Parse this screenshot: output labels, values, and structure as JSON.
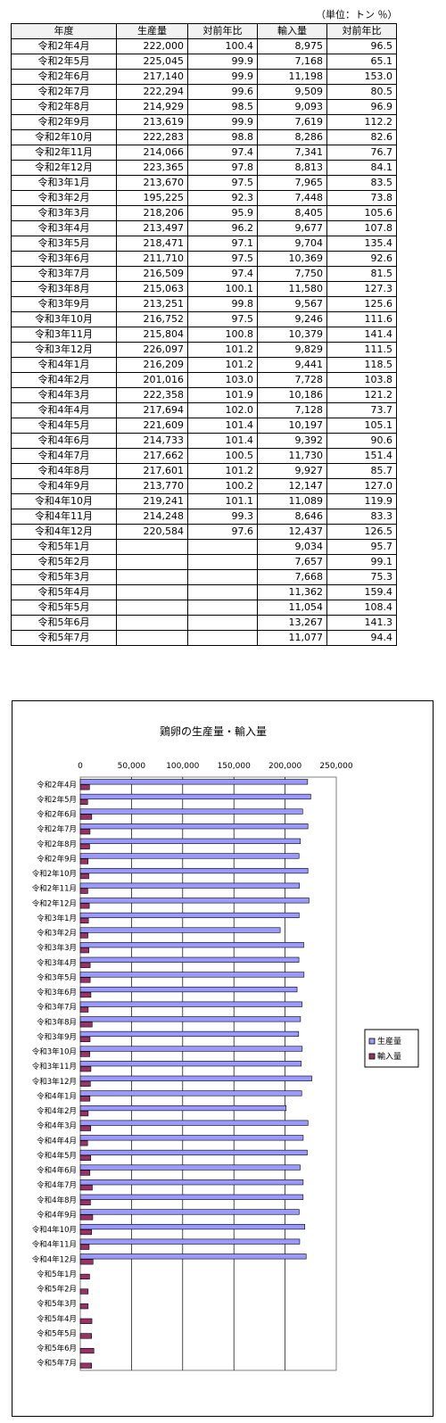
{
  "unit_note": "（単位：トン ％）",
  "table": {
    "headers": [
      "年度",
      "生産量",
      "対前年比",
      "輸入量",
      "対前年比"
    ],
    "rows": [
      [
        "令和2年4月",
        "222,000",
        "100.4",
        "8,975",
        "96.5"
      ],
      [
        "令和2年5月",
        "225,045",
        "99.9",
        "7,168",
        "65.1"
      ],
      [
        "令和2年6月",
        "217,140",
        "99.9",
        "11,198",
        "153.0"
      ],
      [
        "令和2年7月",
        "222,294",
        "99.6",
        "9,509",
        "80.5"
      ],
      [
        "令和2年8月",
        "214,929",
        "98.5",
        "9,093",
        "96.9"
      ],
      [
        "令和2年9月",
        "213,619",
        "99.9",
        "7,619",
        "112.2"
      ],
      [
        "令和2年10月",
        "222,283",
        "98.8",
        "8,286",
        "82.6"
      ],
      [
        "令和2年11月",
        "214,066",
        "97.4",
        "7,341",
        "76.7"
      ],
      [
        "令和2年12月",
        "223,365",
        "97.8",
        "8,813",
        "84.1"
      ],
      [
        "令和3年1月",
        "213,670",
        "97.5",
        "7,965",
        "83.5"
      ],
      [
        "令和3年2月",
        "195,225",
        "92.3",
        "7,448",
        "73.8"
      ],
      [
        "令和3年3月",
        "218,206",
        "95.9",
        "8,405",
        "105.6"
      ],
      [
        "令和3年4月",
        "213,497",
        "96.2",
        "9,677",
        "107.8"
      ],
      [
        "令和3年5月",
        "218,471",
        "97.1",
        "9,704",
        "135.4"
      ],
      [
        "令和3年6月",
        "211,710",
        "97.5",
        "10,369",
        "92.6"
      ],
      [
        "令和3年7月",
        "216,509",
        "97.4",
        "7,750",
        "81.5"
      ],
      [
        "令和3年8月",
        "215,063",
        "100.1",
        "11,580",
        "127.3"
      ],
      [
        "令和3年9月",
        "213,251",
        "99.8",
        "9,567",
        "125.6"
      ],
      [
        "令和3年10月",
        "216,752",
        "97.5",
        "9,246",
        "111.6"
      ],
      [
        "令和3年11月",
        "215,804",
        "100.8",
        "10,379",
        "141.4"
      ],
      [
        "令和3年12月",
        "226,097",
        "101.2",
        "9,829",
        "111.5"
      ],
      [
        "令和4年1月",
        "216,209",
        "101.2",
        "9,441",
        "118.5"
      ],
      [
        "令和4年2月",
        "201,016",
        "103.0",
        "7,728",
        "103.8"
      ],
      [
        "令和4年3月",
        "222,358",
        "101.9",
        "10,186",
        "121.2"
      ],
      [
        "令和4年4月",
        "217,694",
        "102.0",
        "7,128",
        "73.7"
      ],
      [
        "令和4年5月",
        "221,609",
        "101.4",
        "10,197",
        "105.1"
      ],
      [
        "令和4年6月",
        "214,733",
        "101.4",
        "9,392",
        "90.6"
      ],
      [
        "令和4年7月",
        "217,662",
        "100.5",
        "11,730",
        "151.4"
      ],
      [
        "令和4年8月",
        "217,601",
        "101.2",
        "9,927",
        "85.7"
      ],
      [
        "令和4年9月",
        "213,770",
        "100.2",
        "12,147",
        "127.0"
      ],
      [
        "令和4年10月",
        "219,241",
        "101.1",
        "11,089",
        "119.9"
      ],
      [
        "令和4年11月",
        "214,248",
        "99.3",
        "8,646",
        "83.3"
      ],
      [
        "令和4年12月",
        "220,584",
        "97.6",
        "12,437",
        "126.5"
      ],
      [
        "令和5年1月",
        "",
        "",
        "9,034",
        "95.7"
      ],
      [
        "令和5年2月",
        "",
        "",
        "7,657",
        "99.1"
      ],
      [
        "令和5年3月",
        "",
        "",
        "7,668",
        "75.3"
      ],
      [
        "令和5年4月",
        "",
        "",
        "11,362",
        "159.4"
      ],
      [
        "令和5年5月",
        "",
        "",
        "11,054",
        "108.4"
      ],
      [
        "令和5年6月",
        "",
        "",
        "13,267",
        "141.3"
      ],
      [
        "令和5年7月",
        "",
        "",
        "11,077",
        "94.4"
      ]
    ]
  },
  "colors": {
    "production": "#9999ff",
    "imports": "#993366",
    "bar_outline": "#000000",
    "plot_border": "#808080"
  },
  "chart_data": {
    "type": "bar",
    "orientation": "horizontal",
    "title": "鶏卵の生産量・輸入量",
    "xlabel": "",
    "ylabel": "",
    "xlim": [
      0,
      250000
    ],
    "tick_labels": [
      "0",
      "50,000",
      "100,000",
      "150,000",
      "200,000",
      "250,000"
    ],
    "tick_values": [
      0,
      50000,
      100000,
      150000,
      200000,
      250000
    ],
    "grid": true,
    "legend_position": "right",
    "categories": [
      "令和2年4月",
      "令和2年5月",
      "令和2年6月",
      "令和2年7月",
      "令和2年8月",
      "令和2年9月",
      "令和2年10月",
      "令和2年11月",
      "令和2年12月",
      "令和3年1月",
      "令和3年2月",
      "令和3年3月",
      "令和3年4月",
      "令和3年5月",
      "令和3年6月",
      "令和3年7月",
      "令和3年8月",
      "令和3年9月",
      "令和3年10月",
      "令和3年11月",
      "令和3年12月",
      "令和4年1月",
      "令和4年2月",
      "令和4年3月",
      "令和4年4月",
      "令和4年5月",
      "令和4年6月",
      "令和4年7月",
      "令和4年8月",
      "令和4年9月",
      "令和4年10月",
      "令和4年11月",
      "令和4年12月",
      "令和5年1月",
      "令和5年2月",
      "令和5年3月",
      "令和5年4月",
      "令和5年5月",
      "令和5年6月",
      "令和5年7月"
    ],
    "series": [
      {
        "name": "生産量",
        "values": [
          222000,
          225045,
          217140,
          222294,
          214929,
          213619,
          222283,
          214066,
          223365,
          213670,
          195225,
          218206,
          213497,
          218471,
          211710,
          216509,
          215063,
          213251,
          216752,
          215804,
          226097,
          216209,
          201016,
          222358,
          217694,
          221609,
          214733,
          217662,
          217601,
          213770,
          219241,
          214248,
          220584,
          null,
          null,
          null,
          null,
          null,
          null,
          null
        ]
      },
      {
        "name": "輸入量",
        "values": [
          8975,
          7168,
          11198,
          9509,
          9093,
          7619,
          8286,
          7341,
          8813,
          7965,
          7448,
          8405,
          9677,
          9704,
          10369,
          7750,
          11580,
          9567,
          9246,
          10379,
          9829,
          9441,
          7728,
          10186,
          7128,
          10197,
          9392,
          11730,
          9927,
          12147,
          11089,
          8646,
          12437,
          9034,
          7657,
          7668,
          11362,
          11054,
          13267,
          11077
        ]
      }
    ]
  }
}
